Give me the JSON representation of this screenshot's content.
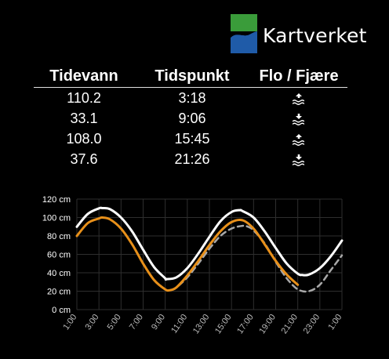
{
  "logo": {
    "text": "Kartverket",
    "colors": {
      "green": "#3a9c3a",
      "blue": "#1f5ba8"
    }
  },
  "table": {
    "headers": [
      "Tidevann",
      "Tidspunkt",
      "Flo / Fjære"
    ],
    "rows": [
      {
        "level": "110.2",
        "time": "3:18",
        "icon": "high-tide-icon"
      },
      {
        "level": "33.1",
        "time": "9:06",
        "icon": "low-tide-icon"
      },
      {
        "level": "108.0",
        "time": "15:45",
        "icon": "high-tide-icon"
      },
      {
        "level": "37.6",
        "time": "21:26",
        "icon": "low-tide-icon"
      }
    ]
  },
  "chart_data": {
    "type": "line",
    "xlabel": "",
    "ylabel": "",
    "x_range": [
      1,
      25
    ],
    "ylim": [
      0,
      120
    ],
    "y_ticks": [
      "0 cm",
      "20 cm",
      "40 cm",
      "60 cm",
      "80 cm",
      "100 cm",
      "120 cm"
    ],
    "x_ticks": [
      "1:00",
      "3:00",
      "5:00",
      "7:00",
      "9:00",
      "11:00",
      "13:00",
      "15:00",
      "17:00",
      "19:00",
      "21:00",
      "23:00",
      "1:00"
    ],
    "grid": true,
    "series": [
      {
        "style": "white-solid",
        "color": "#ffffff",
        "x": [
          1,
          2,
          3,
          3.3,
          4,
          5,
          6,
          7,
          8,
          9,
          9.1,
          10,
          11,
          12,
          13,
          14,
          15,
          15.75,
          16,
          17,
          18,
          19,
          20,
          21,
          21.4,
          22,
          23,
          24,
          25
        ],
        "y": [
          90,
          104,
          110,
          110.2,
          109,
          100,
          85,
          65,
          46,
          34,
          33.1,
          35,
          45,
          61,
          79,
          96,
          106,
          108,
          107,
          100,
          85,
          67,
          50,
          39,
          37.6,
          38,
          45,
          58,
          75
        ]
      },
      {
        "style": "orange-solid",
        "color": "#e8901a",
        "x": [
          1,
          2,
          3,
          3.3,
          4,
          5,
          6,
          7,
          8,
          9,
          9.4,
          10,
          11,
          12,
          13,
          14,
          15,
          16,
          17,
          18,
          19,
          20,
          21
        ],
        "y": [
          80,
          94,
          99,
          100,
          98,
          88,
          71,
          50,
          32,
          22,
          21,
          24,
          37,
          53,
          70,
          85,
          95,
          97,
          88,
          71,
          53,
          38,
          27
        ]
      },
      {
        "style": "gray-dashed",
        "color": "#a8a8a8",
        "x": [
          9.5,
          10,
          11,
          12,
          13,
          14,
          15,
          16,
          16.5,
          17,
          18,
          19,
          20,
          21,
          22,
          23,
          24,
          25
        ],
        "y": [
          21,
          24,
          35,
          50,
          66,
          80,
          88,
          91,
          90,
          86,
          72,
          52,
          34,
          22,
          20,
          27,
          43,
          59
        ]
      }
    ]
  }
}
